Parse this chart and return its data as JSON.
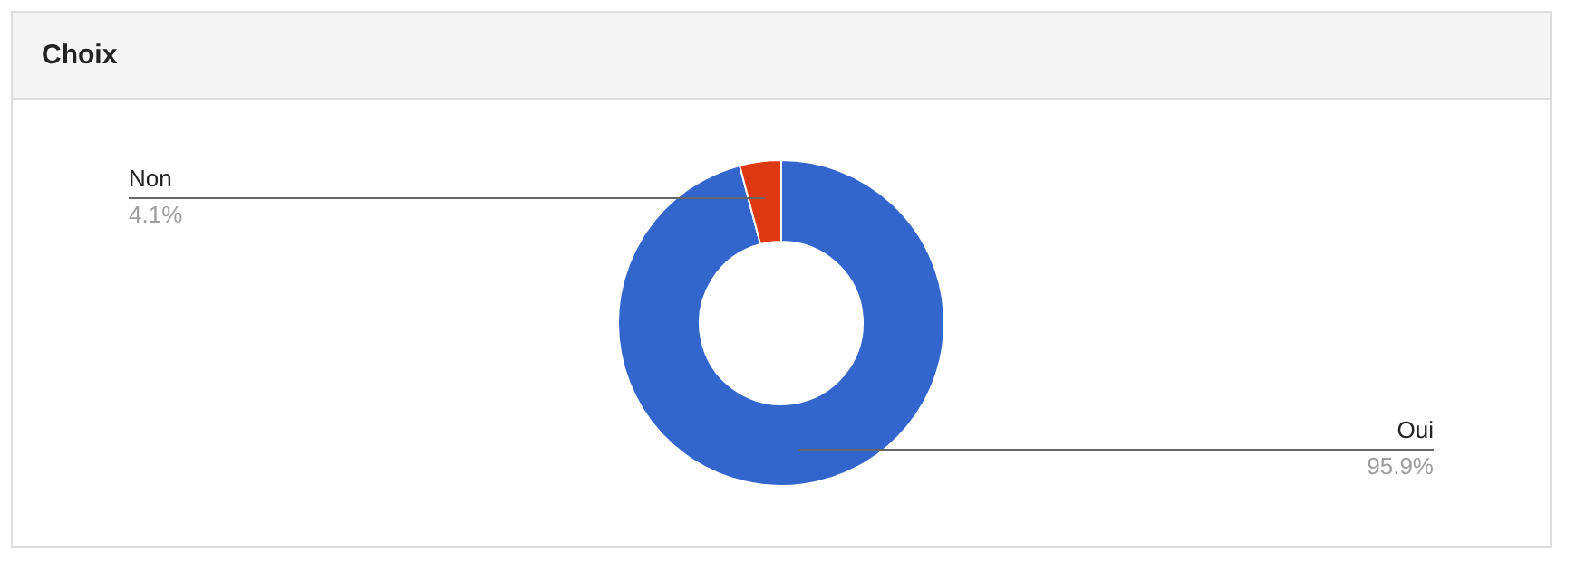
{
  "chart_data": {
    "type": "donut",
    "title": "Choix",
    "categories": [
      "Oui",
      "Non"
    ],
    "values": [
      95.9,
      4.1
    ],
    "colors": [
      "#3366cc",
      "#dc3912"
    ],
    "value_labels": [
      "95.9%",
      "4.1%"
    ],
    "legend": false
  }
}
